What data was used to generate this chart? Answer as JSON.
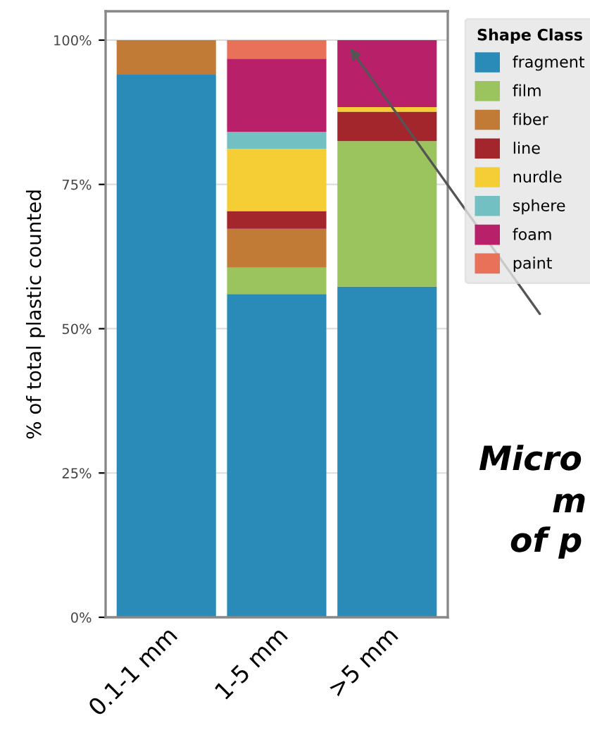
{
  "chart_data": {
    "type": "bar",
    "stacked": true,
    "ylabel": "% of total plastic counted",
    "legend_title": "Shape Class",
    "legend": "right",
    "categories": [
      "0.1-1 mm",
      "1-5 mm",
      ">5 mm"
    ],
    "ylim": [
      0,
      105
    ],
    "yticks": [
      {
        "value": 0,
        "label": "0%"
      },
      {
        "value": 25,
        "label": "25%"
      },
      {
        "value": 50,
        "label": "50%"
      },
      {
        "value": 75,
        "label": "75%"
      },
      {
        "value": 100,
        "label": "100%"
      }
    ],
    "grid": "y",
    "series": [
      {
        "name": "fragment",
        "color": "#2a8bb8",
        "values": [
          94,
          56,
          57.3
        ]
      },
      {
        "name": "film",
        "color": "#9bc45e",
        "values": [
          0,
          4.6,
          25.2
        ]
      },
      {
        "name": "fiber",
        "color": "#c27b36",
        "values": [
          6,
          6.7,
          0
        ]
      },
      {
        "name": "line",
        "color": "#a3262d",
        "values": [
          0,
          3.1,
          5.1
        ]
      },
      {
        "name": "nurdle",
        "color": "#f5cd34",
        "values": [
          0,
          10.8,
          0.8
        ]
      },
      {
        "name": "sphere",
        "color": "#72c0c2",
        "values": [
          0,
          2.9,
          0
        ]
      },
      {
        "name": "foam",
        "color": "#b8206a",
        "values": [
          0,
          12.7,
          11.6
        ]
      },
      {
        "name": "paint",
        "color": "#e8715a",
        "values": [
          0,
          3.2,
          0
        ]
      }
    ],
    "annotations": [
      "Micro",
      "m",
      "of p"
    ]
  }
}
